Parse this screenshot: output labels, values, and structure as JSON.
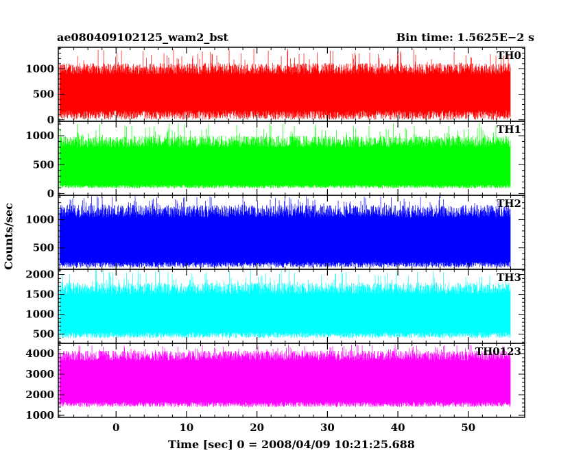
{
  "chart_data": {
    "type": "line",
    "title_left": "ae080409102125_wam2_bst",
    "title_right": "Bin time: 1.5625E−2 s",
    "xlabel": "Time [sec] 0 = 2008/04/09 10:21:25.688",
    "ylabel": "Counts/sec",
    "xlim": [
      -8.2,
      58
    ],
    "data_x_range": [
      -8,
      56
    ],
    "xticks": [
      "0",
      "10",
      "20",
      "30",
      "40",
      "50"
    ],
    "grid": false,
    "panels": [
      {
        "name": "TH0",
        "color": "#ff0000",
        "ylim": [
          -30,
          1420
        ],
        "yticks": [
          "0",
          "500",
          "1000"
        ],
        "base": 0,
        "mean": 560,
        "low": 180,
        "high": 1000,
        "spike_max": 1400
      },
      {
        "name": "TH1",
        "color": "#00ff00",
        "ylim": [
          -30,
          1250
        ],
        "yticks": [
          "0",
          "500",
          "1000"
        ],
        "base": 90,
        "mean": 500,
        "low": 150,
        "high": 900,
        "spike_max": 1230
      },
      {
        "name": "TH2",
        "color": "#0000ff",
        "ylim": [
          120,
          1430
        ],
        "yticks": [
          "500",
          "1000"
        ],
        "base": 150,
        "mean": 700,
        "low": 250,
        "high": 1150,
        "spike_max": 1420
      },
      {
        "name": "TH3",
        "color": "#00ffff",
        "ylim": [
          270,
          2130
        ],
        "yticks": [
          "500",
          "1000",
          "1500",
          "2000"
        ],
        "base": 400,
        "mean": 1050,
        "low": 550,
        "high": 1650,
        "spike_max": 2120
      },
      {
        "name": "TH0123",
        "color": "#ff00ff",
        "ylim": [
          900,
          4500
        ],
        "yticks": [
          "1000",
          "2000",
          "3000",
          "4000"
        ],
        "base": 1400,
        "mean": 2900,
        "low": 1650,
        "high": 3900,
        "spike_max": 4450
      }
    ]
  }
}
